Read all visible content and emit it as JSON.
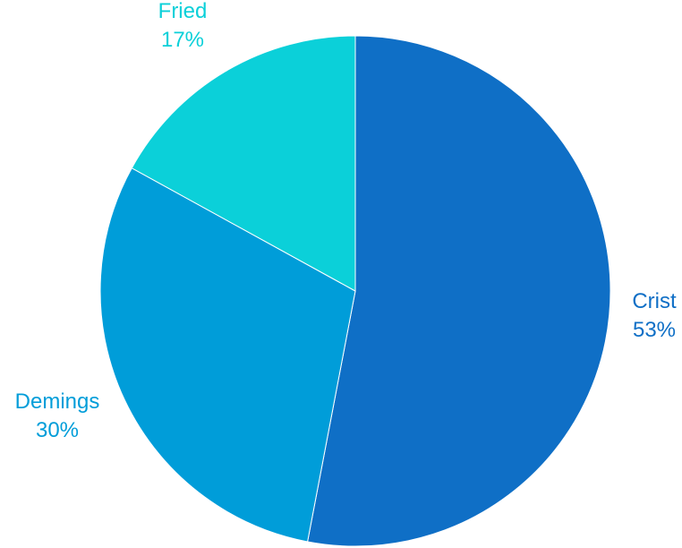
{
  "chart_data": {
    "type": "pie",
    "title": "",
    "start_angle_deg": 0,
    "direction": "clockwise",
    "slices": [
      {
        "label": "Crist",
        "value": 53,
        "value_text": "53%",
        "color": "#0F6FC6"
      },
      {
        "label": "Demings",
        "value": 30,
        "value_text": "30%",
        "color": "#009DD9"
      },
      {
        "label": "Fried",
        "value": 17,
        "value_text": "17%",
        "color": "#0BD0D9"
      }
    ]
  }
}
